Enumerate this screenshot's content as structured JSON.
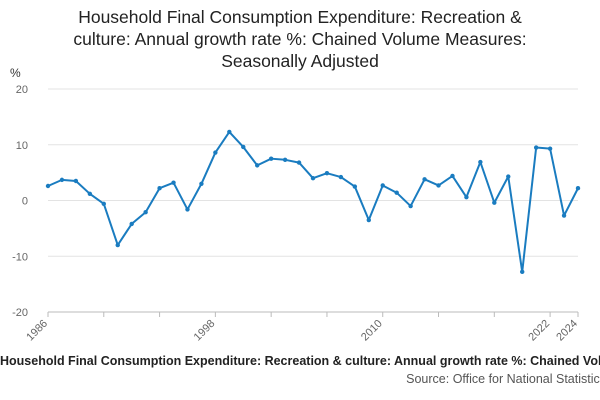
{
  "chart_data": {
    "type": "line",
    "title_lines": [
      "Household Final Consumption Expenditure: Recreation &",
      "culture: Annual growth rate %: Chained Volume Measures:",
      "Seasonally Adjusted"
    ],
    "unit": "%",
    "y_ticks": [
      20,
      10,
      0,
      -10,
      -20
    ],
    "ylim": [
      -20,
      20
    ],
    "xlim": [
      1986,
      2024
    ],
    "x_ticks": [
      1986,
      1998,
      2010,
      2022,
      2024
    ],
    "grid": "horizontal",
    "series": [
      {
        "color": "#1a7cc0",
        "x": [
          1986,
          1987,
          1988,
          1989,
          1990,
          1991,
          1992,
          1993,
          1994,
          1995,
          1996,
          1997,
          1998,
          1999,
          2000,
          2001,
          2002,
          2003,
          2004,
          2005,
          2006,
          2007,
          2008,
          2009,
          2010,
          2011,
          2012,
          2013,
          2014,
          2015,
          2016,
          2017,
          2018,
          2019,
          2020,
          2021,
          2022,
          2023,
          2024
        ],
        "values": [
          2.6,
          3.7,
          3.5,
          1.2,
          -0.6,
          -8.0,
          -4.2,
          -2.1,
          2.2,
          3.2,
          -1.6,
          3.0,
          8.6,
          12.3,
          9.6,
          6.3,
          7.5,
          7.3,
          6.8,
          4.0,
          4.9,
          4.2,
          2.5,
          -3.5,
          2.7,
          1.4,
          -1.0,
          3.8,
          2.7,
          4.4,
          0.6,
          6.9,
          -0.4,
          4.3,
          -12.8,
          9.5,
          9.3,
          -2.7,
          2.2
        ]
      }
    ]
  },
  "footer": {
    "caption": "Household Final Consumption Expenditure: Recreation & culture: Annual growth rate %: Chained Volume Measures: Seasonally Adjusted",
    "source": "Source: Office for National Statistics"
  }
}
